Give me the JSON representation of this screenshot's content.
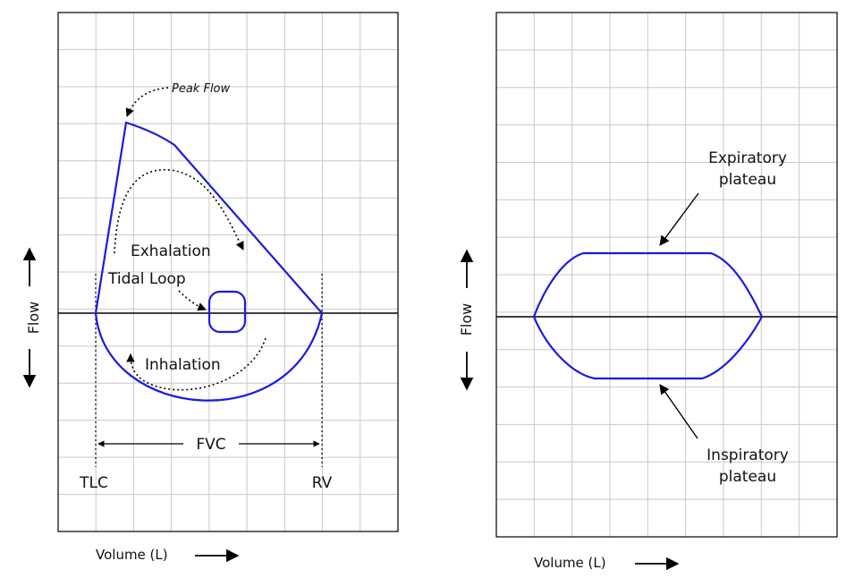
{
  "left_panel": {
    "axis_x": "Volume (L)",
    "axis_y": "Flow",
    "labels": {
      "peak_flow": "Peak Flow",
      "exhalation": "Exhalation",
      "tidal_loop": "Tidal Loop",
      "inhalation": "Inhalation",
      "fvc": "FVC",
      "tlc": "TLC",
      "rv": "RV"
    }
  },
  "right_panel": {
    "axis_x": "Volume (L)",
    "axis_y": "Flow",
    "expiratory": [
      "Expiratory",
      "plateau"
    ],
    "inspiratory": [
      "Inspiratory",
      "plateau"
    ]
  },
  "colors": {
    "curve": "#1a1adf",
    "grid": "#c8c8c8",
    "frame": "#000000",
    "text": "#111111"
  }
}
